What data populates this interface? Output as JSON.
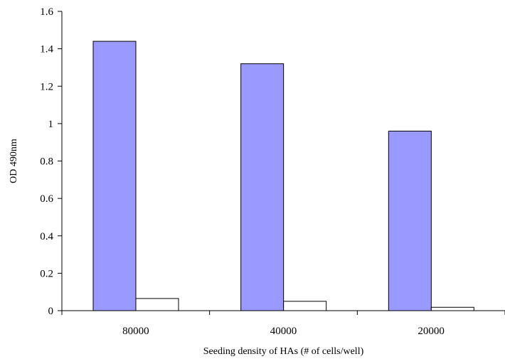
{
  "chart_data": {
    "type": "bar",
    "title": "",
    "xlabel": "Seeding density of HAs (# of cells/well)",
    "ylabel": "OD 490nm",
    "categories": [
      "80000",
      "40000",
      "20000"
    ],
    "series": [
      {
        "values": [
          1.44,
          1.32,
          0.96
        ],
        "color": "#9999ff"
      },
      {
        "values": [
          0.065,
          0.05,
          0.018
        ],
        "color": "#ffffff"
      }
    ],
    "ylim": [
      0,
      1.6
    ],
    "yticks": [
      "0",
      "0.2",
      "0.4",
      "0.6",
      "0.8",
      "1",
      "1.2",
      "1.4",
      "1.6"
    ],
    "grid": false,
    "legend": "none"
  }
}
